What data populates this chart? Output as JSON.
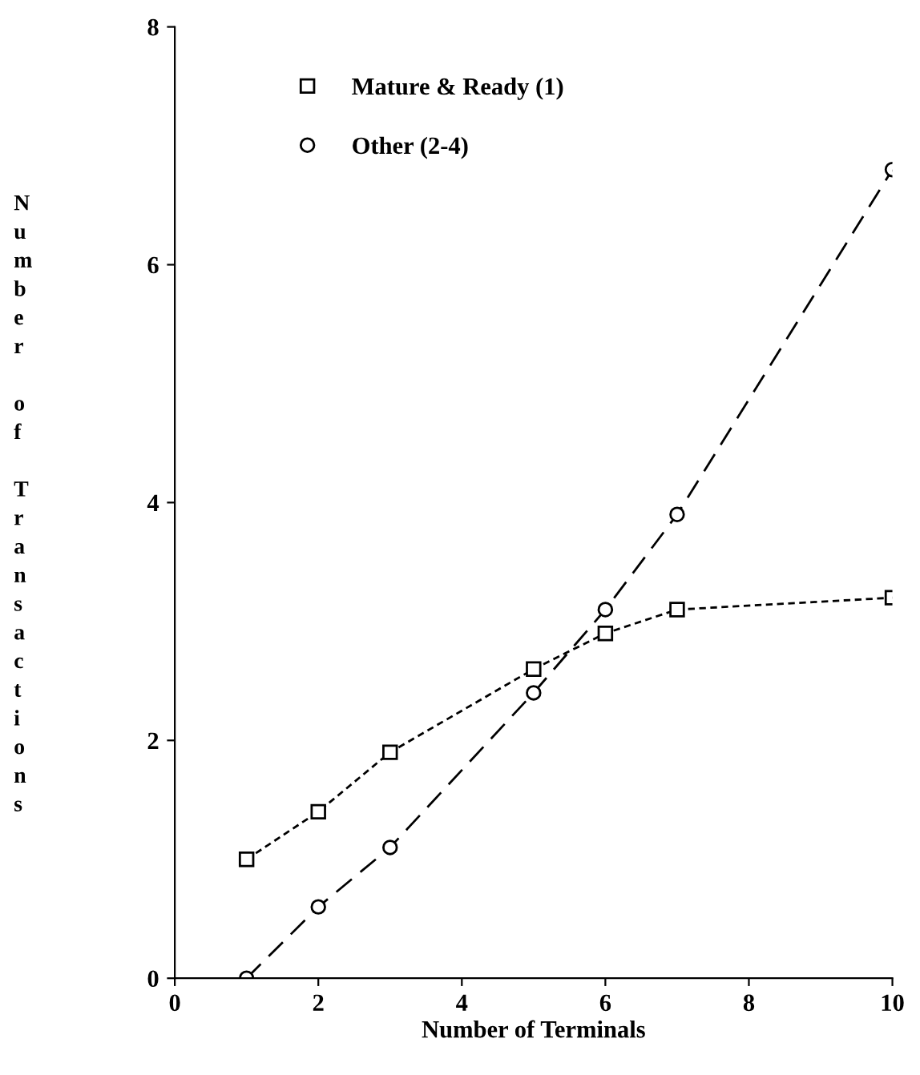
{
  "chart_data": {
    "type": "line",
    "xlabel": "Number of Terminals",
    "ylabel": "Number of Transactions",
    "x": [
      1,
      2,
      3,
      5,
      6,
      7,
      10
    ],
    "series": [
      {
        "name": "Mature & Ready (1)",
        "color": "#000000",
        "marker": "square",
        "line_style": "dotted",
        "values": [
          1.0,
          1.4,
          1.9,
          2.6,
          2.9,
          3.1,
          3.2
        ]
      },
      {
        "name": "Other (2-4)",
        "color": "#000000",
        "marker": "circle",
        "line_style": "dashed",
        "values": [
          0.0,
          0.6,
          1.1,
          2.4,
          3.1,
          3.9,
          6.8
        ]
      }
    ],
    "xlim": [
      0,
      10
    ],
    "ylim": [
      0,
      8
    ],
    "xticks": [
      0,
      2,
      4,
      6,
      8,
      10
    ],
    "yticks": [
      0,
      2,
      4,
      6,
      8
    ],
    "grid": false,
    "legend": "top left"
  }
}
